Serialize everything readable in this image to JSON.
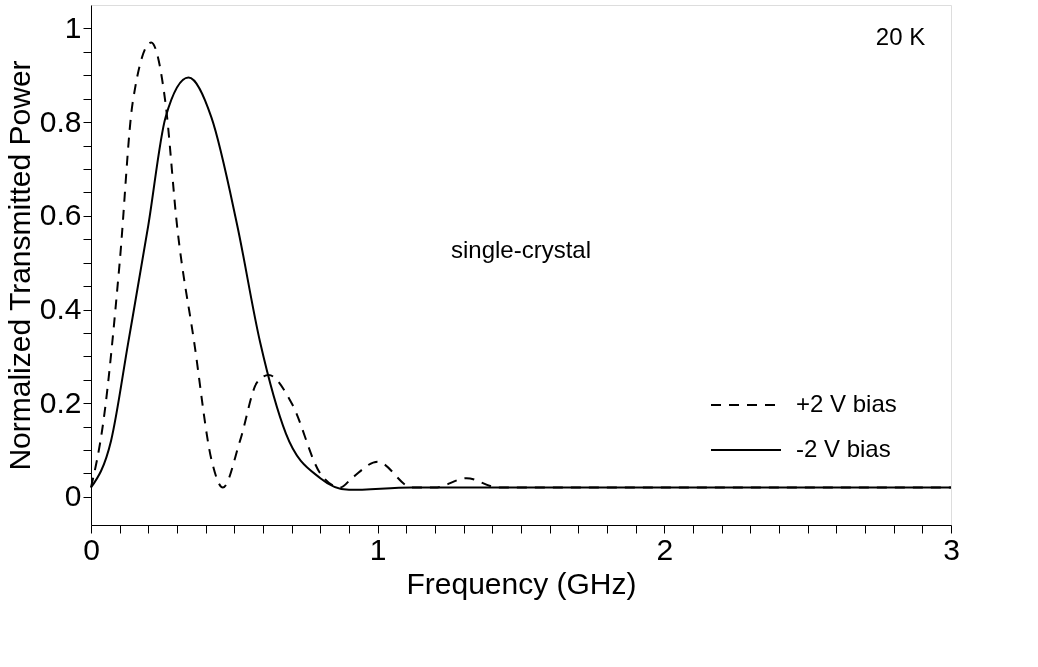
{
  "chart_data": {
    "type": "line",
    "xlabel": "Frequency (GHz)",
    "ylabel": "Normalized Transmitted Power",
    "annotations": [
      "20 K",
      "single-crystal"
    ],
    "xlim": [
      0,
      3
    ],
    "ylim": [
      -0.06,
      1.05
    ],
    "xticks": [
      0,
      {
        "value": 0.1,
        "label": null
      },
      {
        "value": 0.2,
        "label": null
      },
      {
        "value": 0.3,
        "label": null
      },
      {
        "value": 0.4,
        "label": null
      },
      {
        "value": 0.5,
        "label": null
      },
      {
        "value": 0.6,
        "label": null
      },
      {
        "value": 0.7,
        "label": null
      },
      {
        "value": 0.8,
        "label": null
      },
      {
        "value": 0.9,
        "label": null
      },
      1,
      {
        "value": 1.1,
        "label": null
      },
      {
        "value": 1.2,
        "label": null
      },
      {
        "value": 1.3,
        "label": null
      },
      {
        "value": 1.4,
        "label": null
      },
      {
        "value": 1.5,
        "label": null
      },
      {
        "value": 1.6,
        "label": null
      },
      {
        "value": 1.7,
        "label": null
      },
      {
        "value": 1.8,
        "label": null
      },
      {
        "value": 1.9,
        "label": null
      },
      2,
      {
        "value": 2.1,
        "label": null
      },
      {
        "value": 2.2,
        "label": null
      },
      {
        "value": 2.3,
        "label": null
      },
      {
        "value": 2.4,
        "label": null
      },
      {
        "value": 2.5,
        "label": null
      },
      {
        "value": 2.6,
        "label": null
      },
      {
        "value": 2.7,
        "label": null
      },
      {
        "value": 2.8,
        "label": null
      },
      {
        "value": 2.9,
        "label": null
      },
      3
    ],
    "yticks": [
      0,
      {
        "value": 0.05,
        "label": null
      },
      {
        "value": 0.1,
        "label": null
      },
      {
        "value": 0.15,
        "label": null
      },
      0.2,
      {
        "value": 0.25,
        "label": null
      },
      {
        "value": 0.3,
        "label": null
      },
      {
        "value": 0.35,
        "label": null
      },
      0.4,
      {
        "value": 0.45,
        "label": null
      },
      {
        "value": 0.5,
        "label": null
      },
      {
        "value": 0.55,
        "label": null
      },
      0.6,
      {
        "value": 0.65,
        "label": null
      },
      {
        "value": 0.7,
        "label": null
      },
      {
        "value": 0.75,
        "label": null
      },
      0.8,
      {
        "value": 0.85,
        "label": null
      },
      {
        "value": 0.9,
        "label": null
      },
      {
        "value": 0.95,
        "label": null
      },
      1
    ],
    "grid": false,
    "legend": "bottom right",
    "series": [
      {
        "name": "+2 V bias",
        "color": "#000000",
        "line_style": "dashed",
        "x": [
          0,
          0.043,
          0.1,
          0.145,
          0.21,
          0.26,
          0.3,
          0.36,
          0.42,
          0.46,
          0.52,
          0.58,
          0.62,
          0.7,
          0.8,
          0.87,
          0.91,
          1.0,
          1.12,
          1.2,
          1.31,
          1.42,
          1.6,
          2.0,
          2.5,
          3.0
        ],
        "values": [
          0.02,
          0.16,
          0.5,
          0.84,
          0.97,
          0.84,
          0.58,
          0.33,
          0.08,
          0.02,
          0.12,
          0.245,
          0.26,
          0.2,
          0.05,
          0.02,
          0.04,
          0.075,
          0.02,
          0.02,
          0.04,
          0.02,
          0.02,
          0.02,
          0.02,
          0.02
        ]
      },
      {
        "name": "-2 V bias",
        "color": "#000000",
        "line_style": "solid",
        "x": [
          0,
          0.07,
          0.13,
          0.2,
          0.26,
          0.34,
          0.42,
          0.51,
          0.59,
          0.68,
          0.8,
          0.9,
          1.12,
          1.5,
          2.0,
          2.5,
          3.0
        ],
        "values": [
          0.02,
          0.12,
          0.33,
          0.58,
          0.81,
          0.895,
          0.81,
          0.58,
          0.33,
          0.135,
          0.04,
          0.015,
          0.02,
          0.02,
          0.02,
          0.02,
          0.02
        ]
      }
    ]
  }
}
